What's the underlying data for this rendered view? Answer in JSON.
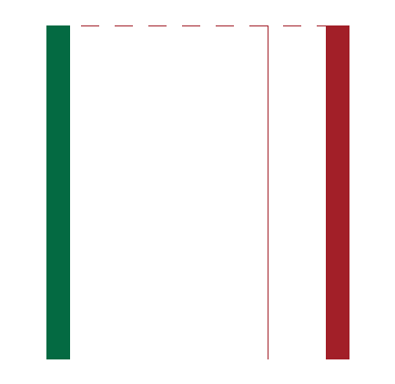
{
  "colors": {
    "left_bar": "#046a42",
    "right_bar": "#a21f28",
    "lines": "#a21f28",
    "background": "#ffffff"
  }
}
